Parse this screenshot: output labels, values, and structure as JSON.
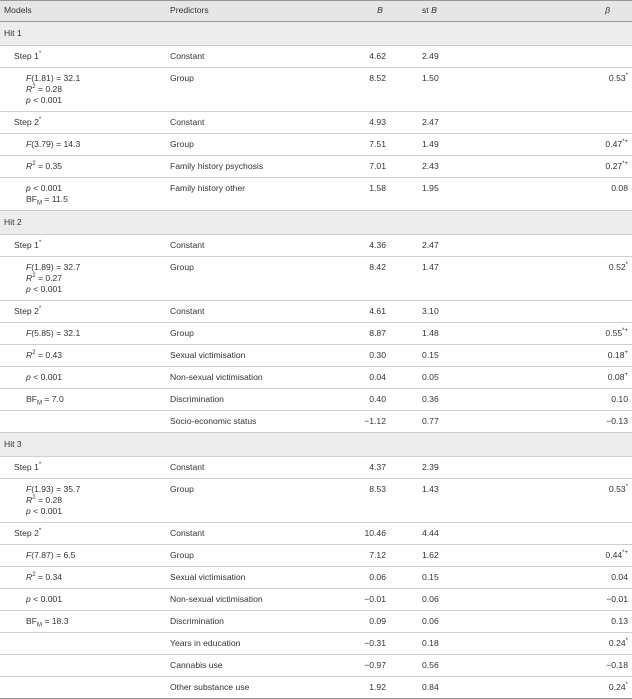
{
  "header": {
    "models": "Models",
    "predictors": "Predictors",
    "b": "B",
    "stb": {
      "r": "st",
      "i": "B"
    },
    "beta": "β"
  },
  "sections": [
    {
      "title": "Hit 1",
      "rows": [
        {
          "model": [
            {
              "r": "Step 1",
              "sup": "*"
            }
          ],
          "predictor": "Constant",
          "b": "4.62",
          "stb": "2.49"
        },
        {
          "model": [
            {
              "i": "F",
              "t": "(1.81) = 32.1"
            },
            {
              "i": "R",
              "sup": "2",
              "t": " = 0.28"
            },
            {
              "i": "p",
              "t": " < 0.001"
            }
          ],
          "predictor": "Group",
          "b": "8.52",
          "stb": "1.50",
          "beta": "0.53",
          "beta_sup": "*"
        },
        {
          "model": [
            {
              "r": "Step 2",
              "sup": "*"
            }
          ],
          "predictor": "Constant",
          "b": "4.93",
          "stb": "2.47"
        },
        {
          "model": [
            {
              "i": "F",
              "t": "(3.79) = 14.3"
            }
          ],
          "predictor": "Group",
          "b": "7.51",
          "stb": "1.49",
          "beta": "0.47",
          "beta_sup": "*+"
        },
        {
          "model": [
            {
              "i": "R",
              "sup": "2",
              "t": " = 0.35"
            }
          ],
          "predictor": "Family history psychosis",
          "b": "7.01",
          "stb": "2.43",
          "beta": "0.27",
          "beta_sup": "*+"
        },
        {
          "model": [
            {
              "i": "p",
              "t": " < 0.001"
            },
            {
              "r": "BF",
              "sub": "M",
              "t": " = 11.5"
            }
          ],
          "predictor": "Family history other",
          "b": "1.58",
          "stb": "1.95",
          "beta": "0.08"
        }
      ]
    },
    {
      "title": "Hit 2",
      "rows": [
        {
          "model": [
            {
              "r": "Step 1",
              "sup": "*"
            }
          ],
          "predictor": "Constant",
          "b": "4.36",
          "stb": "2.47"
        },
        {
          "model": [
            {
              "i": "F",
              "t": "(1.89) = 32.7"
            },
            {
              "i": "R",
              "sup": "2",
              "t": " = 0.27"
            },
            {
              "i": "p",
              "t": " < 0.001"
            }
          ],
          "predictor": "Group",
          "b": "8.42",
          "stb": "1.47",
          "beta": "0.52",
          "beta_sup": "*"
        },
        {
          "model": [
            {
              "r": "Step 2",
              "sup": "*"
            }
          ],
          "predictor": "Constant",
          "b": "4.61",
          "stb": "3.10"
        },
        {
          "model": [
            {
              "i": "F",
              "t": "(5.85) = 32.1"
            }
          ],
          "predictor": "Group",
          "b": "8.87",
          "stb": "1.48",
          "beta": "0.55",
          "beta_sup": "*+"
        },
        {
          "model": [
            {
              "i": "R",
              "sup": "2",
              "t": " = 0.43"
            }
          ],
          "predictor": "Sexual victimisation",
          "b": "0.30",
          "stb": "0.15",
          "beta": "0.18",
          "beta_sup": "+"
        },
        {
          "model": [
            {
              "i": "p",
              "t": " < 0.001"
            }
          ],
          "predictor": "Non-sexual victimisation",
          "b": "0.04",
          "stb": "0.05",
          "beta": "0.08",
          "beta_sup": "+"
        },
        {
          "model": [
            {
              "r": "BF",
              "sub": "M",
              "t": " = 7.0"
            }
          ],
          "predictor": "Discrimination",
          "b": "0.40",
          "stb": "0.36",
          "beta": "0.10"
        },
        {
          "predictor": "Socio-economic status",
          "b": "−1.12",
          "stb": "0.77",
          "beta": "−0.13"
        }
      ]
    },
    {
      "title": "Hit 3",
      "rows": [
        {
          "model": [
            {
              "r": "Step 1",
              "sup": "*"
            }
          ],
          "predictor": "Constant",
          "b": "4.37",
          "stb": "2.39"
        },
        {
          "model": [
            {
              "i": "F",
              "t": "(1.93) = 35.7"
            },
            {
              "i": "R",
              "sup": "2",
              "t": " = 0.28"
            },
            {
              "i": "p",
              "t": " < 0.001"
            }
          ],
          "predictor": "Group",
          "b": "8.53",
          "stb": "1.43",
          "beta": "0.53",
          "beta_sup": "*"
        },
        {
          "model": [
            {
              "r": "Step 2",
              "sup": "*"
            }
          ],
          "predictor": "Constant",
          "b": "10.46",
          "stb": "4.44"
        },
        {
          "model": [
            {
              "i": "F",
              "t": "(7.87) = 6.5"
            }
          ],
          "predictor": "Group",
          "b": "7.12",
          "stb": "1.62",
          "beta": "0.44",
          "beta_sup": "*+"
        },
        {
          "model": [
            {
              "i": "R",
              "sup": "2",
              "t": " = 0.34"
            }
          ],
          "predictor": "Sexual victimisation",
          "b": "0.06",
          "stb": "0.15",
          "beta": "0.04"
        },
        {
          "model": [
            {
              "i": "p",
              "t": " < 0.001"
            }
          ],
          "predictor": "Non-sexual victimisation",
          "b": "−0.01",
          "stb": "0.06",
          "beta": "−0.01"
        },
        {
          "model": [
            {
              "r": "BF",
              "sub": "M",
              "t": " = 18.3"
            }
          ],
          "predictor": "Discrimination",
          "b": "0.09",
          "stb": "0.06",
          "beta": "0.13"
        },
        {
          "predictor": "Years in education",
          "b": "−0.31",
          "stb": "0.18",
          "beta": "0.24",
          "beta_sup": "*"
        },
        {
          "predictor": "Cannabis use",
          "b": "−0.97",
          "stb": "0.56",
          "beta": "−0.18"
        },
        {
          "predictor": "Other substance use",
          "b": "1.92",
          "stb": "0.84",
          "beta": "0.24",
          "beta_sup": "*"
        }
      ]
    }
  ]
}
